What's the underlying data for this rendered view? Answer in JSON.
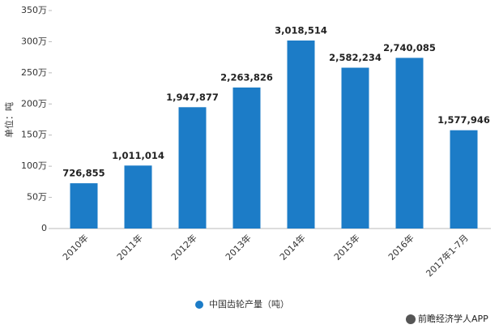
{
  "chart_data": {
    "type": "bar",
    "y_axis_label": "单位：吨",
    "categories": [
      "2010年",
      "2011年",
      "2012年",
      "2013年",
      "2014年",
      "2015年",
      "2016年",
      "2017年1-7月"
    ],
    "series": [
      {
        "name": "中国齿轮产量（吨）",
        "color": "#1c7cc7",
        "values": [
          726855,
          1011014,
          1947877,
          2263826,
          3018514,
          2582234,
          2740085,
          1577946
        ],
        "value_labels": [
          "726,855",
          "1,011,014",
          "1,947,877",
          "2,263,826",
          "3,018,514",
          "2,582,234",
          "2,740,085",
          "1,577,946"
        ]
      }
    ],
    "ylim": [
      0,
      3500000
    ],
    "yticks": [
      0,
      {
        "value": 500000,
        "label": "50万"
      },
      {
        "value": 1000000,
        "label": "100万"
      },
      {
        "value": 1500000,
        "label": "150万"
      },
      {
        "value": 2000000,
        "label": "200万"
      },
      {
        "value": 2500000,
        "label": "250万"
      },
      {
        "value": 3000000,
        "label": "300万"
      },
      {
        "value": 3500000,
        "label": "350万"
      }
    ],
    "grid": false,
    "legend": "bottom",
    "source": "前瞻经济学人APP"
  }
}
